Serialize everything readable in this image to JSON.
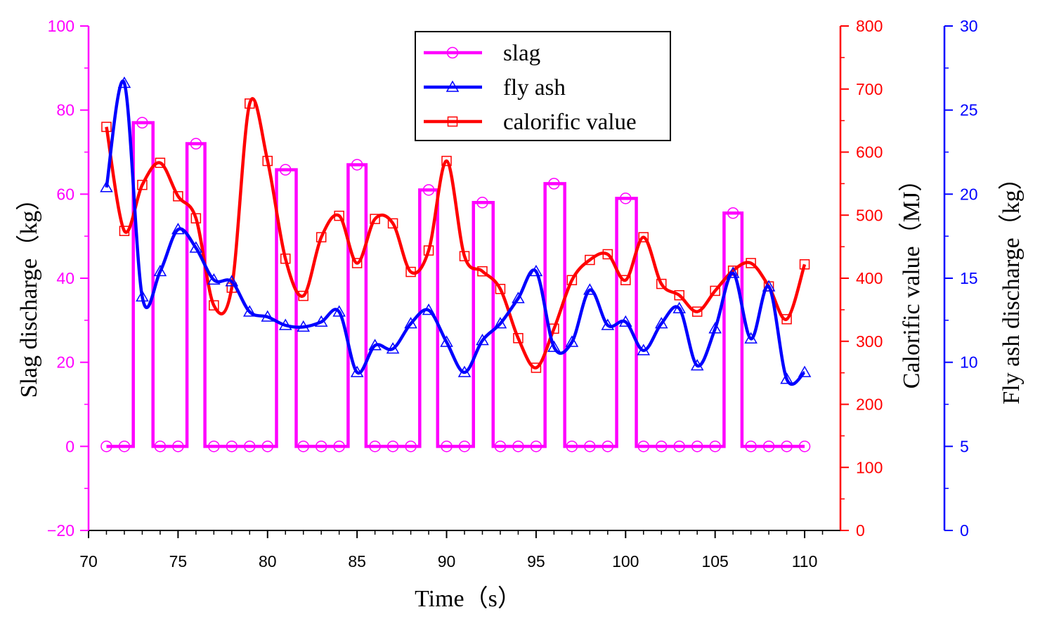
{
  "chart_data": {
    "type": "line",
    "x_axis": {
      "label": "Time（s）",
      "range": [
        70,
        112
      ],
      "ticks": [
        70,
        75,
        80,
        85,
        90,
        95,
        100,
        105,
        110
      ],
      "tick_labels": [
        "70",
        "75",
        "80",
        "85",
        "90",
        "95",
        "100",
        "105",
        "110"
      ],
      "minor_ticks": [
        71,
        72,
        73,
        74,
        76,
        77,
        78,
        79,
        81,
        82,
        83,
        84,
        86,
        87,
        88,
        89,
        91,
        92,
        93,
        94,
        96,
        97,
        98,
        99,
        101,
        102,
        103,
        104,
        106,
        107,
        108,
        109,
        111
      ]
    },
    "y_left": {
      "label": "Slag discharge（kg）",
      "range": [
        -20,
        100
      ],
      "ticks": [
        -20,
        0,
        20,
        40,
        60,
        80,
        100
      ],
      "tick_labels": [
        "−20",
        "0",
        "20",
        "40",
        "60",
        "80",
        "100"
      ],
      "color": "#FF00FF"
    },
    "y_right1": {
      "label": "Calorific value（MJ）",
      "range": [
        0,
        800
      ],
      "ticks": [
        0,
        100,
        200,
        300,
        400,
        500,
        600,
        700,
        800
      ],
      "tick_labels": [
        "0",
        "100",
        "200",
        "300",
        "400",
        "500",
        "600",
        "700",
        "800"
      ],
      "color": "#FF0000"
    },
    "y_right2": {
      "label": "Fly ash discharge（kg）",
      "range": [
        0,
        30
      ],
      "ticks": [
        0,
        5,
        10,
        15,
        20,
        25,
        30
      ],
      "tick_labels": [
        "0",
        "5",
        "10",
        "15",
        "20",
        "25",
        "30"
      ],
      "color": "#0000FF"
    },
    "legend": {
      "position": "top-center",
      "entries": [
        {
          "name": "slag",
          "color": "#FF00FF",
          "marker": "circle"
        },
        {
          "name": "fly ash",
          "color": "#0000FF",
          "marker": "triangle"
        },
        {
          "name": "calorific value",
          "color": "#FF0000",
          "marker": "square"
        }
      ]
    },
    "series": [
      {
        "name": "slag",
        "axis": "y_left",
        "color": "#FF00FF",
        "marker": "circle",
        "interpolation": "step",
        "x": [
          71,
          72,
          73,
          74,
          75,
          76,
          77,
          78,
          79,
          80,
          81,
          82,
          83,
          84,
          85,
          86,
          87,
          88,
          89,
          90,
          91,
          92,
          93,
          94,
          95,
          96,
          97,
          98,
          99,
          100,
          101,
          102,
          103,
          104,
          105,
          106,
          107,
          108,
          109,
          110
        ],
        "values": [
          0,
          0,
          77,
          0,
          0,
          72,
          0,
          0,
          0,
          0,
          65.8,
          0,
          0,
          0,
          67,
          0,
          0,
          0,
          61,
          0,
          0,
          58,
          0,
          0,
          0,
          62.5,
          0,
          0,
          0,
          59,
          0,
          0,
          0,
          0,
          0,
          55.5,
          0,
          0,
          0,
          0
        ],
        "pulse_edges": [
          [
            72.5,
            73.6
          ],
          [
            75.5,
            76.5
          ],
          [
            80.5,
            81.6
          ],
          [
            84.5,
            85.5
          ],
          [
            88.5,
            89.5
          ],
          [
            91.5,
            92.6
          ],
          [
            95.5,
            96.6
          ],
          [
            99.5,
            100.6
          ],
          [
            105.5,
            106.5
          ]
        ]
      },
      {
        "name": "fly ash",
        "axis": "y_right2",
        "color": "#0000FF",
        "marker": "triangle",
        "interpolation": "smooth",
        "x": [
          71,
          72,
          73,
          74,
          75,
          76,
          77,
          78,
          79,
          80,
          81,
          82,
          83,
          84,
          85,
          86,
          87,
          88,
          89,
          90,
          91,
          92,
          93,
          94,
          95,
          96,
          97,
          98,
          99,
          100,
          101,
          102,
          103,
          104,
          105,
          106,
          107,
          108,
          109,
          110
        ],
        "values": [
          20.4,
          26.6,
          13.9,
          15.4,
          17.9,
          16.8,
          14.9,
          14.8,
          13.0,
          12.7,
          12.2,
          12.1,
          12.4,
          13.0,
          9.4,
          11.0,
          10.8,
          12.3,
          13.1,
          11.2,
          9.4,
          11.3,
          12.3,
          13.8,
          15.4,
          10.9,
          11.2,
          14.3,
          12.2,
          12.4,
          10.7,
          12.3,
          13.2,
          9.8,
          12.0,
          15.3,
          11.4,
          14.5,
          9.0,
          9.4
        ]
      },
      {
        "name": "calorific value",
        "axis": "y_right1",
        "color": "#FF0000",
        "marker": "square",
        "interpolation": "smooth",
        "x": [
          71,
          72,
          73,
          74,
          75,
          76,
          77,
          78,
          79,
          80,
          81,
          82,
          83,
          84,
          85,
          86,
          87,
          88,
          89,
          90,
          91,
          92,
          93,
          94,
          95,
          96,
          97,
          98,
          99,
          100,
          101,
          102,
          103,
          104,
          105,
          106,
          107,
          108,
          109,
          110
        ],
        "values": [
          640,
          475,
          548,
          583,
          530,
          495,
          357,
          385,
          677,
          586,
          431,
          372,
          465,
          499,
          424,
          494,
          487,
          410,
          444,
          586,
          435,
          411,
          383,
          305,
          258,
          320,
          397,
          429,
          438,
          397,
          465,
          391,
          373,
          347,
          380,
          412,
          424,
          387,
          335,
          422
        ]
      }
    ]
  }
}
